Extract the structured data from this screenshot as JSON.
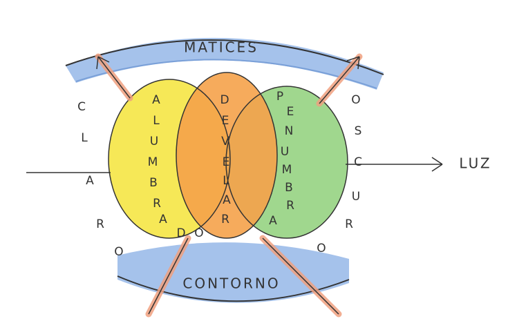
{
  "top_band": {
    "label": "MATICES"
  },
  "bottom_band": {
    "label": "CONTORNO"
  },
  "right_arrow": {
    "label": "LUZ"
  },
  "left_word": {
    "letters": [
      "C",
      "L",
      "A",
      "R",
      "O"
    ]
  },
  "right_word": {
    "letters": [
      "O",
      "S",
      "C",
      "U",
      "R",
      "O"
    ]
  },
  "yellow_circle": {
    "letters": [
      "A",
      "L",
      "U",
      "M",
      "B",
      "R",
      "A",
      "D",
      "O"
    ]
  },
  "orange_circle": {
    "letters": [
      "D",
      "E",
      "V",
      "E",
      "L",
      "A",
      "R"
    ]
  },
  "green_circle": {
    "letters": [
      "P",
      "E",
      "N",
      "U",
      "M",
      "B",
      "R",
      "A"
    ]
  }
}
